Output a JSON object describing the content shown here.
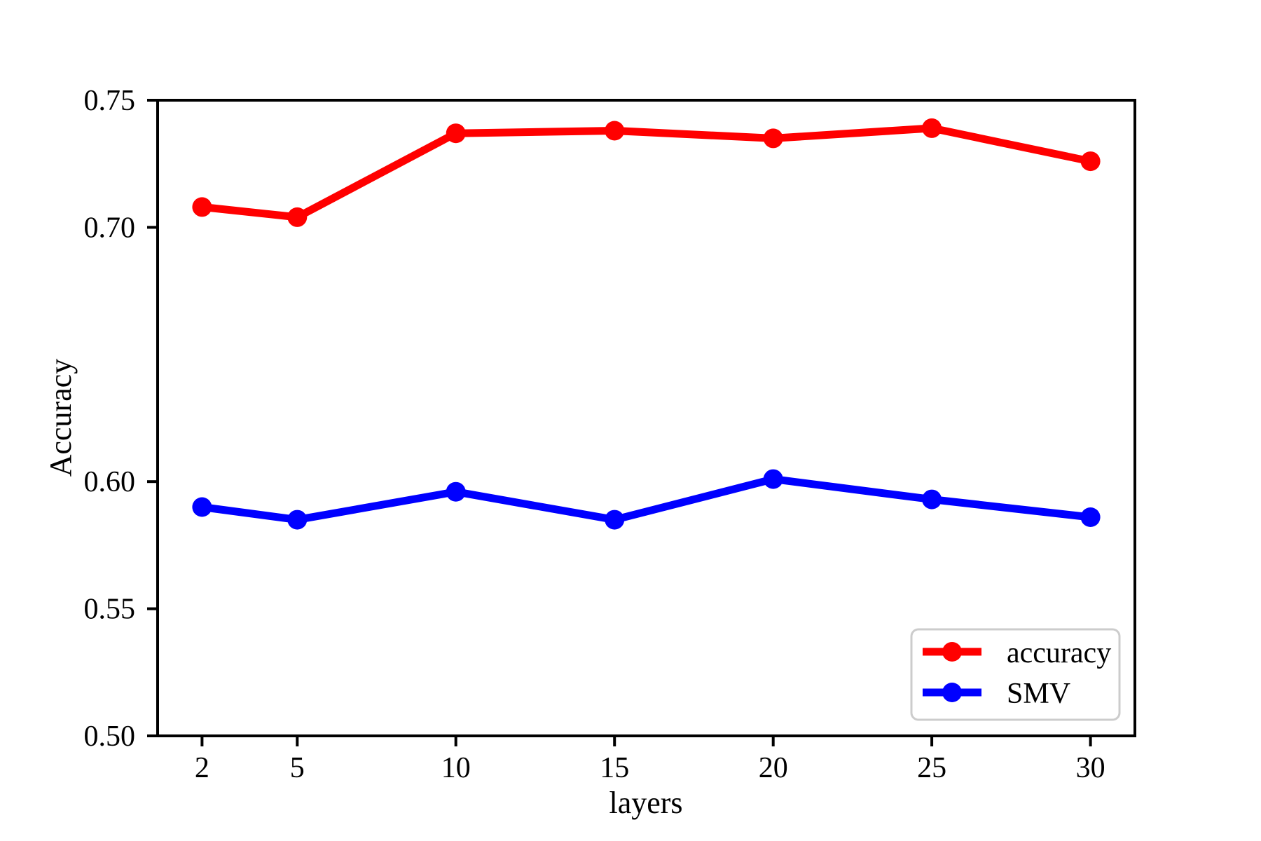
{
  "chart_data": {
    "type": "line",
    "title": "",
    "xlabel": "layers",
    "ylabel": "Accuracy",
    "x": [
      2,
      5,
      10,
      15,
      20,
      25,
      30
    ],
    "series": [
      {
        "name": "accuracy",
        "color": "#ff0000",
        "values": [
          0.708,
          0.704,
          0.737,
          0.738,
          0.735,
          0.739,
          0.726
        ]
      },
      {
        "name": "SMV",
        "color": "#0000ff",
        "values": [
          0.59,
          0.585,
          0.596,
          0.585,
          0.601,
          0.593,
          0.586
        ]
      }
    ],
    "xlim": [
      0.6,
      31.4
    ],
    "ylim": [
      0.5,
      0.75
    ],
    "xticks": [
      2,
      5,
      10,
      15,
      20,
      25,
      30
    ],
    "xtick_labels": [
      "2",
      "5",
      "10",
      "15",
      "20",
      "25",
      "30"
    ],
    "yticks": [
      0.5,
      0.55,
      0.6,
      0.7,
      0.75
    ],
    "ytick_labels": [
      "0.50",
      "0.55",
      "0.60",
      "0.70",
      "0.75"
    ],
    "grid": false,
    "legend": {
      "position": "lower right",
      "entries": [
        "accuracy",
        "SMV"
      ],
      "border_color": "#cccccc",
      "background": "#ffffff"
    },
    "axis_color": "#000000",
    "plot_background": "#ffffff"
  }
}
